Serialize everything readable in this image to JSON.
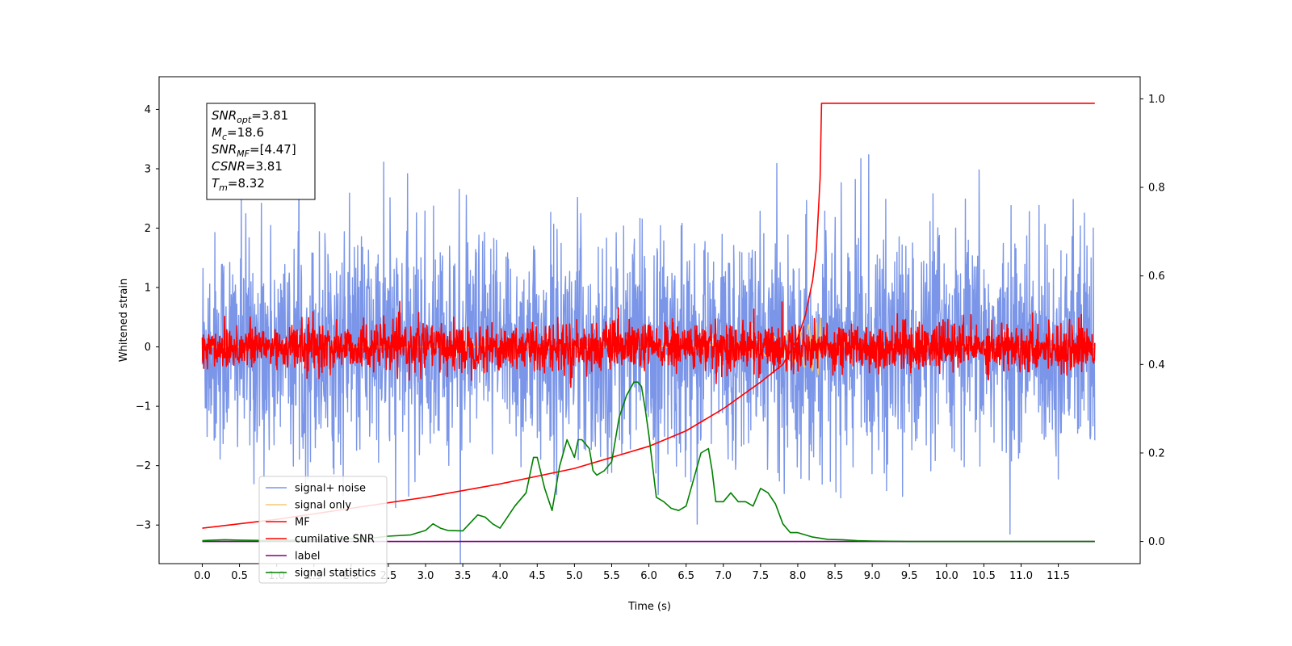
{
  "chart_data": {
    "type": "line",
    "xlabel": "Time (s)",
    "ylabel": "Whitened strain",
    "xlim": [
      -0.58,
      12.6
    ],
    "ylim": [
      -3.65,
      4.55
    ],
    "y2lim": [
      -0.05,
      1.05
    ],
    "x_ticks": [
      0.0,
      0.5,
      1.0,
      1.5,
      2.0,
      2.5,
      3.0,
      3.5,
      4.0,
      4.5,
      5.0,
      5.5,
      6.0,
      6.5,
      7.0,
      7.5,
      8.0,
      8.5,
      9.0,
      9.5,
      10.0,
      10.5,
      11.0,
      11.5
    ],
    "x_tick_labels": [
      "0.0",
      "0.5",
      "1.0",
      "1.5",
      "2.0",
      "2.5",
      "3.0",
      "3.5",
      "4.0",
      "4.5",
      "5.0",
      "5.5",
      "6.0",
      "6.5",
      "7.0",
      "7.5",
      "8.0",
      "8.5",
      "9.0",
      "9.5",
      "10.0",
      "10.5",
      "11.0",
      "11.5"
    ],
    "y_ticks": [
      -3,
      -2,
      -1,
      0,
      1,
      2,
      3,
      4
    ],
    "y_tick_labels": [
      "−3",
      "−2",
      "−1",
      "0",
      "1",
      "2",
      "3",
      "4"
    ],
    "y2_ticks": [
      0.0,
      0.2,
      0.4,
      0.6,
      0.8,
      1.0
    ],
    "y2_tick_labels": [
      "0.0",
      "0.2",
      "0.4",
      "0.6",
      "0.8",
      "1.0"
    ],
    "grid": false,
    "legend_placement": "lower-left",
    "annotation": {
      "lines": [
        {
          "base": "SNR",
          "sub": "opt",
          "rest": "=3.81"
        },
        {
          "base": "M",
          "sub": "c",
          "rest": "=18.6"
        },
        {
          "base": "SNR",
          "sub": "MF",
          "rest": "=[4.47]"
        },
        {
          "base": "CSNR",
          "sub": "",
          "rest": "=3.81"
        },
        {
          "base": "T",
          "sub": "m",
          "rest": "=8.32"
        }
      ]
    },
    "series": [
      {
        "name": "signal+ noise",
        "color": "#7b96e8",
        "axis": "left",
        "kind": "noise",
        "x_range": [
          0,
          11.99
        ],
        "std": 0.95
      },
      {
        "name": "signal only",
        "color": "#f5c872",
        "axis": "left",
        "kind": "chirp",
        "x_range": [
          0,
          11.99
        ],
        "peak_time": 8.32
      },
      {
        "name": "MF",
        "color": "#ff0000",
        "axis": "left",
        "kind": "noise",
        "x_range": [
          0,
          11.99
        ],
        "std": 0.2
      },
      {
        "name": "cumilative SNR",
        "color": "#ff0000",
        "axis": "right",
        "x": [
          0.0,
          1.0,
          2.0,
          3.0,
          4.0,
          5.0,
          6.0,
          6.5,
          7.0,
          7.5,
          7.8,
          8.0,
          8.1,
          8.2,
          8.25,
          8.3,
          8.32,
          9.0,
          10.0,
          11.0,
          11.99
        ],
        "values": [
          0.03,
          0.05,
          0.075,
          0.1,
          0.13,
          0.165,
          0.215,
          0.25,
          0.3,
          0.36,
          0.4,
          0.46,
          0.51,
          0.59,
          0.66,
          0.82,
          0.99,
          0.99,
          0.99,
          0.99,
          0.99
        ]
      },
      {
        "name": "label",
        "color": "#800080",
        "axis": "right",
        "x": [
          0.0,
          11.99
        ],
        "values": [
          0.0,
          0.0
        ]
      },
      {
        "name": "signal statistics",
        "color": "#008000",
        "axis": "right",
        "x": [
          0.0,
          0.3,
          0.5,
          1.0,
          1.5,
          2.0,
          2.3,
          2.5,
          2.8,
          3.0,
          3.1,
          3.2,
          3.3,
          3.5,
          3.7,
          3.8,
          3.9,
          4.0,
          4.1,
          4.2,
          4.35,
          4.45,
          4.5,
          4.6,
          4.7,
          4.8,
          4.9,
          5.0,
          5.05,
          5.1,
          5.2,
          5.25,
          5.3,
          5.4,
          5.5,
          5.6,
          5.7,
          5.8,
          5.85,
          5.9,
          5.95,
          6.0,
          6.1,
          6.2,
          6.3,
          6.4,
          6.5,
          6.6,
          6.7,
          6.8,
          6.85,
          6.9,
          7.0,
          7.1,
          7.2,
          7.3,
          7.4,
          7.5,
          7.6,
          7.7,
          7.8,
          7.9,
          8.0,
          8.2,
          8.4,
          8.6,
          8.8,
          9.0,
          9.5,
          10.0,
          11.0,
          11.99
        ],
        "values": [
          0.002,
          0.004,
          0.003,
          0.002,
          0.004,
          0.006,
          0.008,
          0.012,
          0.015,
          0.025,
          0.04,
          0.03,
          0.025,
          0.024,
          0.06,
          0.055,
          0.04,
          0.03,
          0.055,
          0.08,
          0.11,
          0.19,
          0.19,
          0.12,
          0.07,
          0.17,
          0.23,
          0.19,
          0.23,
          0.23,
          0.21,
          0.16,
          0.15,
          0.16,
          0.18,
          0.28,
          0.33,
          0.36,
          0.36,
          0.35,
          0.3,
          0.24,
          0.1,
          0.09,
          0.075,
          0.07,
          0.08,
          0.14,
          0.2,
          0.21,
          0.16,
          0.09,
          0.09,
          0.11,
          0.09,
          0.09,
          0.08,
          0.12,
          0.11,
          0.085,
          0.04,
          0.02,
          0.02,
          0.01,
          0.005,
          0.004,
          0.002,
          0.001,
          0.0,
          0.0,
          0.0,
          0.0
        ]
      }
    ]
  }
}
